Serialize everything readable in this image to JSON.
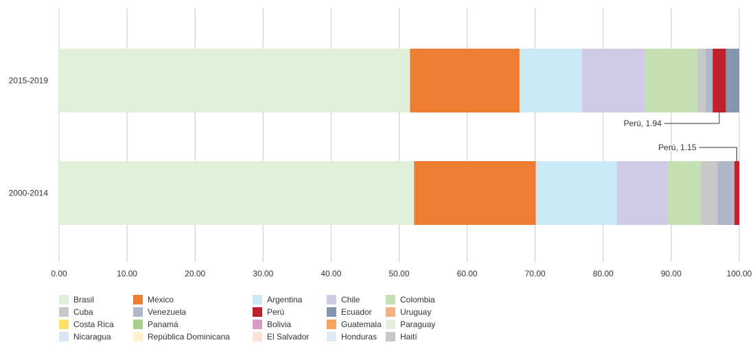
{
  "chart_data": {
    "type": "bar",
    "orientation": "horizontal",
    "stacked": true,
    "title": "",
    "xlabel": "",
    "ylabel": "",
    "xlim": [
      0,
      100
    ],
    "x_ticks": [
      "0.00",
      "10.00",
      "20.00",
      "30.00",
      "40.00",
      "50.00",
      "60.00",
      "70.00",
      "80.00",
      "90.00",
      "100.00"
    ],
    "categories": [
      "2015-2019",
      "2000-2014"
    ],
    "grid": true,
    "legend_position": "bottom",
    "series": [
      {
        "name": "Brasil",
        "color": "#e2efd9",
        "values": [
          51.6,
          52.2
        ]
      },
      {
        "name": "México",
        "color": "#ed7d31",
        "values": [
          16.1,
          17.9
        ]
      },
      {
        "name": "Argentina",
        "color": "#cce9f8",
        "values": [
          9.2,
          11.9
        ]
      },
      {
        "name": "Chile",
        "color": "#cfcae6",
        "values": [
          9.2,
          7.6
        ]
      },
      {
        "name": "Colombia",
        "color": "#c5e0b3",
        "values": [
          7.8,
          4.8
        ]
      },
      {
        "name": "Cuba",
        "color": "#c8c8c8",
        "values": [
          1.2,
          2.4
        ]
      },
      {
        "name": "Venezuela",
        "color": "#adb9ca",
        "values": [
          1.0,
          2.5
        ]
      },
      {
        "name": "Perú",
        "color": "#c0202a",
        "values": [
          1.94,
          1.15
        ]
      },
      {
        "name": "Ecuador",
        "color": "#8496b0",
        "values": [
          2.1,
          0.4
        ]
      },
      {
        "name": "Uruguay",
        "color": "#f4b183",
        "values": [
          0.7,
          0.5
        ]
      },
      {
        "name": "Costa Rica",
        "color": "#ffe066",
        "values": [
          0.8,
          0.3
        ]
      },
      {
        "name": "Panamá",
        "color": "#a9d18e",
        "values": [
          0.5,
          0.4
        ]
      },
      {
        "name": "Bolivia",
        "color": "#d99ac5",
        "values": [
          0.2,
          0.1
        ]
      },
      {
        "name": "Guatemala",
        "color": "#f4a460",
        "values": [
          0.3,
          0.3
        ]
      },
      {
        "name": "Paraguay",
        "color": "#e2efd9",
        "values": [
          0.2,
          0.1
        ]
      },
      {
        "name": "Nicaragua",
        "color": "#dbe5f1",
        "values": [
          0.1,
          0.1
        ]
      },
      {
        "name": "República Dominicana",
        "color": "#fff2cc",
        "values": [
          0.1,
          0.1
        ]
      },
      {
        "name": "El Salvador",
        "color": "#fbe4d5",
        "values": [
          0.1,
          0.1
        ]
      },
      {
        "name": "Honduras",
        "color": "#deebf7",
        "values": [
          0.1,
          0.1
        ]
      },
      {
        "name": "Haití",
        "color": "#c8c8c8",
        "values": [
          0.1,
          0.1
        ]
      }
    ],
    "annotations": [
      {
        "text": "Perú, 1.94",
        "series": "Perú",
        "category": "2015-2019",
        "side": "below"
      },
      {
        "text": "Perú, 1.15",
        "series": "Perú",
        "category": "2000-2014",
        "side": "above"
      }
    ],
    "legend_order": [
      "Brasil",
      "México",
      "Argentina",
      "Chile",
      "Colombia",
      "Cuba",
      "Venezuela",
      "Perú",
      "Ecuador",
      "Uruguay",
      "Costa Rica",
      "Panamá",
      "Bolivia",
      "Guatemala",
      "Paraguay",
      "Nicaragua",
      "República Dominicana",
      "El Salvador",
      "Honduras",
      "Haití"
    ]
  }
}
